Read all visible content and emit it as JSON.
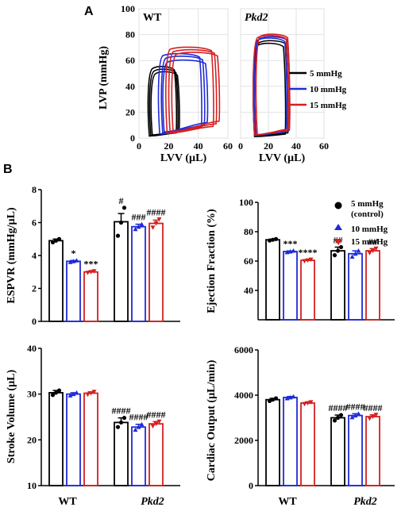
{
  "panel_a": {
    "letter": "A",
    "ylabel": "LVP (mmHg)",
    "xlabel": "LVV (µL)",
    "yticks": [
      "0",
      "20",
      "40",
      "60",
      "80",
      "100"
    ],
    "xticks": [
      "0",
      "20",
      "40",
      "60"
    ],
    "legend": [
      {
        "label": "5 mmHg",
        "color": "#000000"
      },
      {
        "label": "10 mmHg",
        "color": "#1f2bd8"
      },
      {
        "label": "15 mmHg",
        "color": "#d42020"
      }
    ],
    "plots": [
      {
        "title": "WT",
        "title_italic": false
      },
      {
        "title": "Pkd2",
        "title_italic": true
      }
    ]
  },
  "panel_b": {
    "letter": "B",
    "legend": [
      {
        "label": "5 mmHg",
        "label2": "(control)",
        "marker": "circle",
        "color": "#000000"
      },
      {
        "label": "10 mmHg",
        "label2": "",
        "marker": "triangle-up",
        "color": "#1f2bd8"
      },
      {
        "label": "15 mmHg",
        "label2": "",
        "marker": "triangle-down",
        "color": "#d42020"
      }
    ],
    "groups": [
      "WT",
      "Pkd2"
    ]
  },
  "chart_data": [
    {
      "type": "line",
      "title": "WT",
      "xlabel": "LVV (µL)",
      "ylabel": "LVP (mmHg)",
      "xlim": [
        0,
        60
      ],
      "ylim": [
        0,
        100
      ],
      "grid": true,
      "series": [
        {
          "name": "5 mmHg",
          "color": "#000000",
          "loops": [
            {
              "v_min": 7,
              "v_max": 25,
              "p_edp": 4,
              "p_peak": 55
            },
            {
              "v_min": 8,
              "v_max": 26,
              "p_edp": 5,
              "p_peak": 53
            },
            {
              "v_min": 9,
              "v_max": 27,
              "p_edp": 6,
              "p_peak": 51
            }
          ]
        },
        {
          "name": "10 mmHg",
          "color": "#1f2bd8",
          "loops": [
            {
              "v_min": 14,
              "v_max": 42,
              "p_edp": 8,
              "p_peak": 65
            },
            {
              "v_min": 16,
              "v_max": 44,
              "p_edp": 10,
              "p_peak": 63
            },
            {
              "v_min": 17,
              "v_max": 46,
              "p_edp": 12,
              "p_peak": 60
            }
          ]
        },
        {
          "name": "15 mmHg",
          "color": "#d42020",
          "loops": [
            {
              "v_min": 19,
              "v_max": 50,
              "p_edp": 9,
              "p_peak": 70
            },
            {
              "v_min": 21,
              "v_max": 52,
              "p_edp": 11,
              "p_peak": 68
            },
            {
              "v_min": 23,
              "v_max": 54,
              "p_edp": 13,
              "p_peak": 66
            }
          ]
        }
      ]
    },
    {
      "type": "line",
      "title": "Pkd2",
      "xlabel": "LVV (µL)",
      "ylabel": "LVP (mmHg)",
      "xlim": [
        0,
        60
      ],
      "ylim": [
        0,
        100
      ],
      "grid": true,
      "series": [
        {
          "name": "5 mmHg",
          "color": "#000000",
          "loops": [
            {
              "v_min": 10,
              "v_max": 32,
              "p_edp": 3,
              "p_peak": 73
            },
            {
              "v_min": 11,
              "v_max": 34,
              "p_edp": 4,
              "p_peak": 75
            }
          ]
        },
        {
          "name": "10 mmHg",
          "color": "#1f2bd8",
          "loops": [
            {
              "v_min": 10,
              "v_max": 33,
              "p_edp": 5,
              "p_peak": 77
            },
            {
              "v_min": 11,
              "v_max": 35,
              "p_edp": 6,
              "p_peak": 78
            }
          ]
        },
        {
          "name": "15 mmHg",
          "color": "#d42020",
          "loops": [
            {
              "v_min": 10,
              "v_max": 34,
              "p_edp": 6,
              "p_peak": 79
            },
            {
              "v_min": 12,
              "v_max": 35,
              "p_edp": 7,
              "p_peak": 80
            }
          ]
        }
      ]
    },
    {
      "type": "bar",
      "ylabel": "ESPVR (mmHg/µL)",
      "ylim": [
        0,
        8
      ],
      "yticks": [
        0,
        2,
        4,
        6,
        8
      ],
      "groups": [
        "WT",
        "Pkd2"
      ],
      "series": [
        "5 mmHg",
        "10 mmHg",
        "15 mmHg"
      ],
      "bars": [
        {
          "group": "WT",
          "series": "5 mmHg",
          "value": 4.9,
          "sem": 0.1,
          "points": [
            4.8,
            4.9,
            5.0
          ],
          "annotation": ""
        },
        {
          "group": "WT",
          "series": "10 mmHg",
          "value": 3.65,
          "sem": 0.05,
          "points": [
            3.6,
            3.65,
            3.7
          ],
          "annotation": "*"
        },
        {
          "group": "WT",
          "series": "15 mmHg",
          "value": 3.0,
          "sem": 0.05,
          "points": [
            2.95,
            3.0,
            3.05
          ],
          "annotation": "***"
        },
        {
          "group": "Pkd2",
          "series": "5 mmHg",
          "value": 6.05,
          "sem": 0.5,
          "points": [
            5.2,
            6.0,
            6.9
          ],
          "annotation": "#"
        },
        {
          "group": "Pkd2",
          "series": "10 mmHg",
          "value": 5.75,
          "sem": 0.15,
          "points": [
            5.6,
            5.75,
            5.9
          ],
          "annotation": "###"
        },
        {
          "group": "Pkd2",
          "series": "15 mmHg",
          "value": 5.95,
          "sem": 0.2,
          "points": [
            5.7,
            5.95,
            6.2
          ],
          "annotation": "####"
        }
      ]
    },
    {
      "type": "bar",
      "ylabel": "Ejection Fraction (%)",
      "ylim": [
        20,
        100
      ],
      "yticks": [
        40,
        60,
        80,
        100
      ],
      "groups": [
        "WT",
        "Pkd2"
      ],
      "series": [
        "5 mmHg",
        "10 mmHg",
        "15 mmHg"
      ],
      "bars": [
        {
          "group": "WT",
          "series": "5 mmHg",
          "value": 74.5,
          "sem": 0.4,
          "points": [
            74,
            74.5,
            75
          ],
          "annotation": ""
        },
        {
          "group": "WT",
          "series": "10 mmHg",
          "value": 66.5,
          "sem": 0.4,
          "points": [
            66,
            66.5,
            67
          ],
          "annotation": "***"
        },
        {
          "group": "WT",
          "series": "15 mmHg",
          "value": 60.5,
          "sem": 0.4,
          "points": [
            60,
            60.5,
            61
          ],
          "annotation": "****"
        },
        {
          "group": "Pkd2",
          "series": "5 mmHg",
          "value": 67,
          "sem": 2.5,
          "points": [
            64,
            67,
            69.5
          ],
          "annotation": "##"
        },
        {
          "group": "Pkd2",
          "series": "10 mmHg",
          "value": 65,
          "sem": 2.0,
          "points": [
            63,
            65,
            67
          ],
          "annotation": ""
        },
        {
          "group": "Pkd2",
          "series": "15 mmHg",
          "value": 67,
          "sem": 1.5,
          "points": [
            65.5,
            67,
            68.5
          ],
          "annotation": "##"
        }
      ]
    },
    {
      "type": "bar",
      "ylabel": "Stroke Volume (µL)",
      "ylim": [
        10,
        40
      ],
      "yticks": [
        10,
        20,
        30,
        40
      ],
      "groups": [
        "WT",
        "Pkd2"
      ],
      "series": [
        "5 mmHg",
        "10 mmHg",
        "15 mmHg"
      ],
      "bars": [
        {
          "group": "WT",
          "series": "5 mmHg",
          "value": 30.3,
          "sem": 0.5,
          "points": [
            29.8,
            30.3,
            30.8
          ],
          "annotation": ""
        },
        {
          "group": "WT",
          "series": "10 mmHg",
          "value": 30.0,
          "sem": 0.3,
          "points": [
            29.7,
            30.0,
            30.3
          ],
          "annotation": ""
        },
        {
          "group": "WT",
          "series": "15 mmHg",
          "value": 30.2,
          "sem": 0.3,
          "points": [
            29.9,
            30.2,
            30.5
          ],
          "annotation": ""
        },
        {
          "group": "Pkd2",
          "series": "5 mmHg",
          "value": 23.8,
          "sem": 1.0,
          "points": [
            22.8,
            23.8,
            24.8
          ],
          "annotation": "####"
        },
        {
          "group": "Pkd2",
          "series": "10 mmHg",
          "value": 22.8,
          "sem": 0.6,
          "points": [
            22.2,
            22.8,
            23.4
          ],
          "annotation": "####"
        },
        {
          "group": "Pkd2",
          "series": "15 mmHg",
          "value": 23.5,
          "sem": 0.5,
          "points": [
            23.0,
            23.5,
            24.0
          ],
          "annotation": "####"
        }
      ]
    },
    {
      "type": "bar",
      "ylabel": "Cardiac Output (µL/min)",
      "ylim": [
        0,
        6000
      ],
      "yticks": [
        0,
        2000,
        4000,
        6000
      ],
      "groups": [
        "WT",
        "Pkd2"
      ],
      "series": [
        "5 mmHg",
        "10 mmHg",
        "15 mmHg"
      ],
      "bars": [
        {
          "group": "WT",
          "series": "5 mmHg",
          "value": 3800,
          "sem": 60,
          "points": [
            3740,
            3800,
            3860
          ],
          "annotation": ""
        },
        {
          "group": "WT",
          "series": "10 mmHg",
          "value": 3900,
          "sem": 40,
          "points": [
            3860,
            3900,
            3940
          ],
          "annotation": ""
        },
        {
          "group": "WT",
          "series": "15 mmHg",
          "value": 3650,
          "sem": 40,
          "points": [
            3610,
            3650,
            3690
          ],
          "annotation": ""
        },
        {
          "group": "Pkd2",
          "series": "5 mmHg",
          "value": 3000,
          "sem": 120,
          "points": [
            2880,
            3000,
            3120
          ],
          "annotation": "####"
        },
        {
          "group": "Pkd2",
          "series": "10 mmHg",
          "value": 3100,
          "sem": 80,
          "points": [
            3020,
            3100,
            3180
          ],
          "annotation": "####"
        },
        {
          "group": "Pkd2",
          "series": "15 mmHg",
          "value": 3050,
          "sem": 80,
          "points": [
            2970,
            3050,
            3130
          ],
          "annotation": "####"
        }
      ]
    }
  ]
}
